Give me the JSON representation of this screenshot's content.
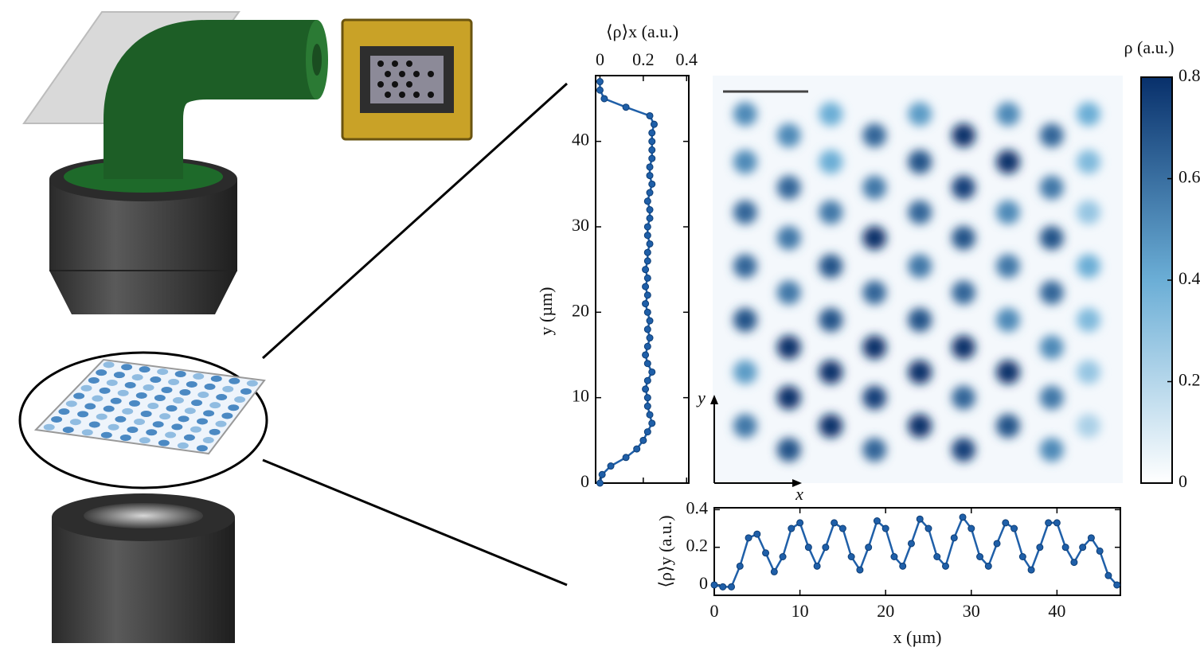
{
  "chart_data": [
    {
      "type": "line",
      "orientation": "vertical",
      "xlabel": "⟨ρ⟩x (a.u.)",
      "ylabel": "y (µm)",
      "y": [
        0,
        1,
        2,
        3,
        4,
        5,
        6,
        7,
        8,
        9,
        10,
        11,
        12,
        13,
        14,
        15,
        16,
        17,
        18,
        19,
        20,
        21,
        22,
        23,
        24,
        25,
        26,
        27,
        28,
        29,
        30,
        31,
        32,
        33,
        34,
        35,
        36,
        37,
        38,
        39,
        40,
        41,
        42,
        43,
        44,
        45,
        46,
        47
      ],
      "values": [
        0.0,
        0.01,
        0.05,
        0.12,
        0.17,
        0.2,
        0.22,
        0.24,
        0.23,
        0.22,
        0.22,
        0.21,
        0.22,
        0.24,
        0.22,
        0.21,
        0.22,
        0.23,
        0.22,
        0.23,
        0.22,
        0.21,
        0.22,
        0.21,
        0.22,
        0.21,
        0.22,
        0.22,
        0.23,
        0.22,
        0.22,
        0.23,
        0.23,
        0.22,
        0.23,
        0.24,
        0.23,
        0.23,
        0.24,
        0.24,
        0.24,
        0.24,
        0.25,
        0.23,
        0.12,
        0.02,
        0.0,
        0.0
      ],
      "color": "#1f5fa8",
      "xlim": [
        -0.02,
        0.41
      ],
      "xticks": [
        0,
        0.2,
        0.4
      ],
      "ylim": [
        0,
        47.7
      ],
      "yticks": [
        0,
        10,
        20,
        30,
        40
      ]
    },
    {
      "type": "heatmap",
      "axis_labels": [
        "x",
        "y"
      ],
      "x": [
        3.8,
        3.8,
        3.8,
        3.8,
        3.8,
        3.8,
        3.8,
        8.9,
        8.9,
        8.9,
        8.9,
        8.9,
        8.9,
        8.9,
        13.8,
        13.8,
        13.8,
        13.8,
        13.8,
        13.8,
        13.8,
        18.9,
        18.9,
        18.9,
        18.9,
        18.9,
        18.9,
        18.9,
        24.2,
        24.2,
        24.2,
        24.2,
        24.2,
        24.2,
        24.2,
        29.3,
        29.3,
        29.3,
        29.3,
        29.3,
        29.3,
        29.3,
        34.5,
        34.5,
        34.5,
        34.5,
        34.5,
        34.5,
        34.5,
        39.6,
        39.6,
        39.6,
        39.6,
        39.6,
        39.6,
        39.6,
        43.9,
        43.9,
        43.9,
        43.9,
        43.9,
        43.9,
        43.9
      ],
      "y": [
        43.2,
        37.6,
        31.7,
        25.4,
        19.1,
        13,
        6.7,
        40.7,
        34.6,
        28.7,
        22.3,
        15.9,
        10,
        3.9,
        43.2,
        37.6,
        31.7,
        25.4,
        19.1,
        13,
        6.7,
        40.7,
        34.6,
        28.7,
        22.3,
        15.9,
        10,
        3.9,
        43.2,
        37.6,
        31.7,
        25.4,
        19.1,
        13,
        6.7,
        40.7,
        34.6,
        28.7,
        22.3,
        15.9,
        10,
        3.9,
        43.2,
        37.6,
        31.7,
        25.4,
        19.1,
        13,
        6.7,
        40.7,
        34.6,
        28.7,
        22.3,
        15.9,
        10,
        3.9,
        43.2,
        37.6,
        31.7,
        25.4,
        19.1,
        13,
        6.7
      ],
      "values": [
        0.45,
        0.45,
        0.55,
        0.55,
        0.6,
        0.4,
        0.5,
        0.45,
        0.55,
        0.5,
        0.5,
        0.7,
        0.75,
        0.6,
        0.35,
        0.35,
        0.5,
        0.6,
        0.6,
        0.7,
        0.7,
        0.55,
        0.5,
        0.7,
        0.55,
        0.7,
        0.65,
        0.55,
        0.4,
        0.6,
        0.55,
        0.5,
        0.6,
        0.75,
        0.75,
        0.75,
        0.65,
        0.6,
        0.55,
        0.75,
        0.55,
        0.65,
        0.45,
        0.7,
        0.45,
        0.5,
        0.45,
        0.75,
        0.6,
        0.55,
        0.5,
        0.6,
        0.55,
        0.45,
        0.5,
        0.45,
        0.35,
        0.3,
        0.25,
        0.35,
        0.3,
        0.25,
        0.2
      ],
      "xlim": [
        0,
        47.9
      ],
      "ylim": [
        0,
        47.7
      ],
      "colormap": [
        "#ffffff",
        "#6baed6",
        "#08306b"
      ],
      "zlim": [
        0,
        0.8
      ],
      "zticks": [
        0,
        0.2,
        0.4,
        0.6,
        0.8
      ],
      "zlabel": "ρ (a.u.)"
    },
    {
      "type": "line",
      "orientation": "horizontal",
      "xlabel": "x (µm)",
      "ylabel": "⟨ρ⟩y (a.u.)",
      "x": [
        0,
        1,
        2,
        3,
        4,
        5,
        6,
        7,
        8,
        9,
        10,
        11,
        12,
        13,
        14,
        15,
        16,
        17,
        18,
        19,
        20,
        21,
        22,
        23,
        24,
        25,
        26,
        27,
        28,
        29,
        30,
        31,
        32,
        33,
        34,
        35,
        36,
        37,
        38,
        39,
        40,
        41,
        42,
        43,
        44,
        45,
        46,
        47
      ],
      "values": [
        0.0,
        -0.01,
        -0.01,
        0.1,
        0.25,
        0.27,
        0.17,
        0.07,
        0.15,
        0.3,
        0.33,
        0.2,
        0.1,
        0.2,
        0.33,
        0.3,
        0.15,
        0.08,
        0.2,
        0.34,
        0.3,
        0.15,
        0.1,
        0.22,
        0.35,
        0.3,
        0.15,
        0.1,
        0.25,
        0.36,
        0.3,
        0.15,
        0.1,
        0.22,
        0.33,
        0.3,
        0.15,
        0.08,
        0.2,
        0.33,
        0.33,
        0.2,
        0.12,
        0.2,
        0.25,
        0.18,
        0.05,
        0.0
      ],
      "color": "#1f5fa8",
      "xlim": [
        0,
        47.4
      ],
      "xticks": [
        0,
        10,
        20,
        30,
        40
      ],
      "ylim": [
        -0.055,
        0.41
      ],
      "yticks": [
        0,
        0.2,
        0.4
      ]
    }
  ]
}
